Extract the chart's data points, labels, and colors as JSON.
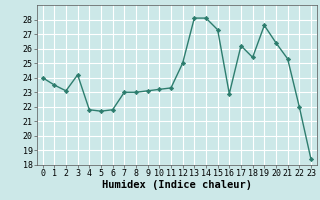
{
  "x": [
    0,
    1,
    2,
    3,
    4,
    5,
    6,
    7,
    8,
    9,
    10,
    11,
    12,
    13,
    14,
    15,
    16,
    17,
    18,
    19,
    20,
    21,
    22,
    23
  ],
  "y": [
    24.0,
    23.5,
    23.1,
    24.2,
    21.8,
    21.7,
    21.8,
    23.0,
    23.0,
    23.1,
    23.2,
    23.3,
    25.0,
    28.1,
    28.1,
    27.3,
    22.9,
    26.2,
    25.4,
    27.6,
    26.4,
    25.3,
    22.0,
    18.4
  ],
  "line_color": "#2d7d6e",
  "marker": "D",
  "marker_size": 2.2,
  "bg_color": "#cce8e8",
  "grid_color": "#ffffff",
  "xlabel": "Humidex (Indice chaleur)",
  "ylim": [
    18,
    29
  ],
  "xlim": [
    -0.5,
    23.5
  ],
  "yticks": [
    18,
    19,
    20,
    21,
    22,
    23,
    24,
    25,
    26,
    27,
    28
  ],
  "xticks": [
    0,
    1,
    2,
    3,
    4,
    5,
    6,
    7,
    8,
    9,
    10,
    11,
    12,
    13,
    14,
    15,
    16,
    17,
    18,
    19,
    20,
    21,
    22,
    23
  ],
  "xtick_labels": [
    "0",
    "1",
    "2",
    "3",
    "4",
    "5",
    "6",
    "7",
    "8",
    "9",
    "10",
    "11",
    "12",
    "13",
    "14",
    "15",
    "16",
    "17",
    "18",
    "19",
    "20",
    "21",
    "22",
    "23"
  ],
  "tick_fontsize": 6.0,
  "xlabel_fontsize": 7.5,
  "line_width": 1.0
}
